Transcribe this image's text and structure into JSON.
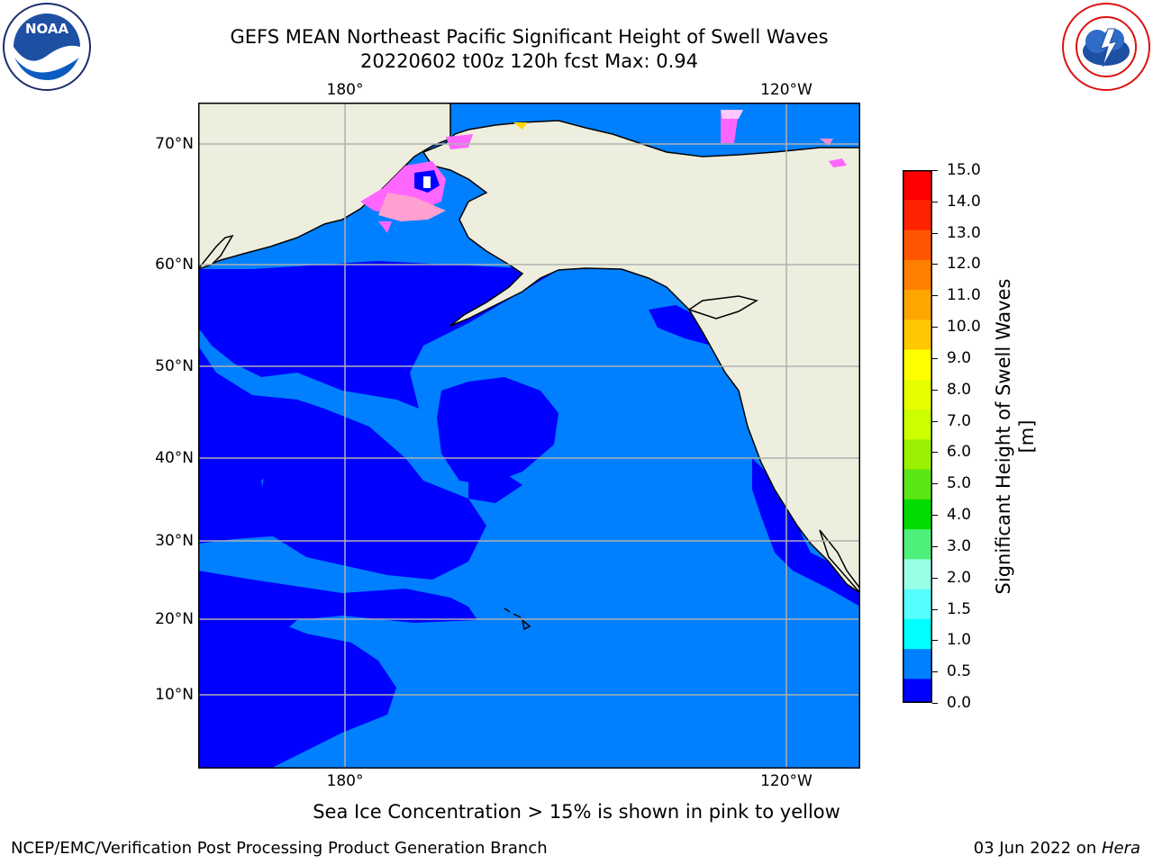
{
  "title_line1": "GEFS MEAN Northeast Pacific Significant Height of Swell Waves",
  "title_line2": "20220602 t00z 120h fcst   Max: 0.94",
  "logos": {
    "left": "noaa-logo",
    "right": "national-weather-service-logo"
  },
  "axes": {
    "top_ticks": [
      "180°",
      "120°W"
    ],
    "bottom_ticks": [
      "180°",
      "120°W"
    ],
    "left_ticks": [
      "70°N",
      "60°N",
      "50°N",
      "40°N",
      "30°N",
      "20°N",
      "10°N"
    ]
  },
  "colorbar": {
    "label": "Significant Height of Swell Waves [m]",
    "ticks": [
      "15.0",
      "14.0",
      "13.0",
      "12.0",
      "11.0",
      "10.0",
      "9.0",
      "8.0",
      "7.0",
      "6.0",
      "5.0",
      "4.0",
      "3.0",
      "2.0",
      "1.5",
      "1.0",
      "0.5",
      "0.0"
    ],
    "colors_top_to_bottom": [
      "#ff0000",
      "#ff2200",
      "#ff5500",
      "#ff7f00",
      "#ffa500",
      "#ffc800",
      "#ffff00",
      "#e6ff00",
      "#ccff00",
      "#99f000",
      "#5ae614",
      "#00dc00",
      "#4df07a",
      "#99ffe6",
      "#55ffff",
      "#00ffff",
      "#0080ff",
      "#0000ff"
    ]
  },
  "map_colors": {
    "land": "#eeeede",
    "ocean_low": "#0000ff",
    "ocean_mid": "#0080ff",
    "ice": "#ff66ff",
    "grid": "#b0b0b0"
  },
  "note": "Sea Ice Concentration > 15% is shown in pink to yellow",
  "footer_left": "NCEP/EMC/Verification Post Processing Product Generation Branch",
  "footer_right_date": "03 Jun 2022 on ",
  "footer_right_host": "Hera"
}
